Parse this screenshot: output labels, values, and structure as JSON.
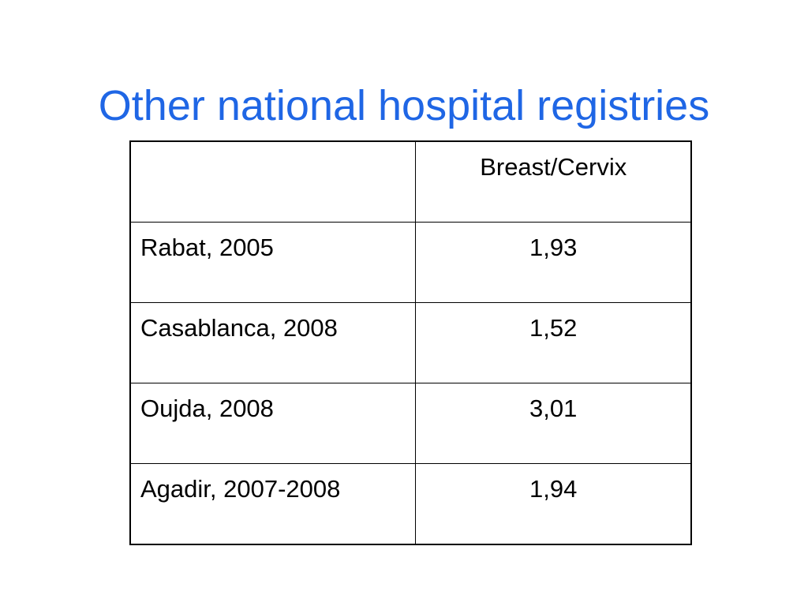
{
  "slide": {
    "title": "Other national hospital registries"
  },
  "table": {
    "header": {
      "corner": "",
      "column": "Breast/Cervix"
    },
    "rows": [
      {
        "label": "Rabat, 2005",
        "value": "1,93"
      },
      {
        "label": "Casablanca, 2008",
        "value": "1,52"
      },
      {
        "label": "Oujda, 2008",
        "value": "3,01"
      },
      {
        "label": "Agadir, 2007-2008",
        "value": "1,94"
      }
    ]
  },
  "colors": {
    "title": "#1f66e5",
    "text": "#000000",
    "border": "#000000",
    "background": "#ffffff"
  }
}
